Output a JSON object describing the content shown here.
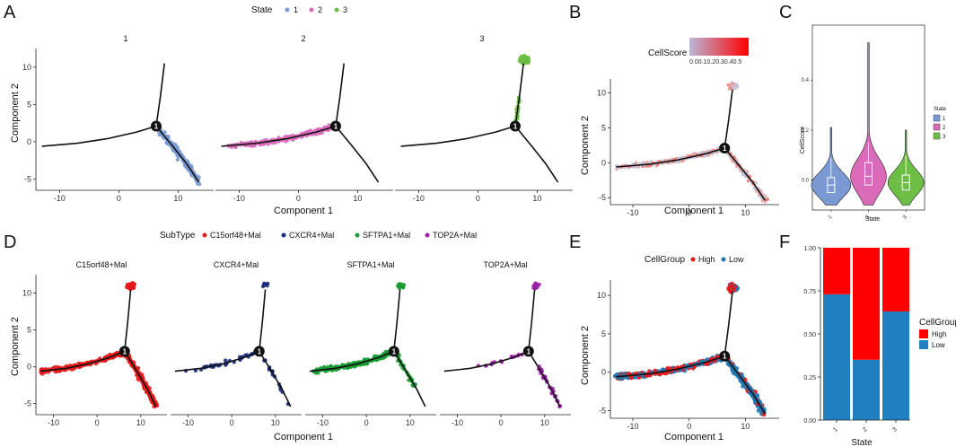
{
  "panels": {
    "A": {
      "label": "A",
      "legend_title": "State",
      "legend_items": [
        {
          "label": "1",
          "color": "#7b9ad3"
        },
        {
          "label": "2",
          "color": "#d96bb9"
        },
        {
          "label": "3",
          "color": "#6dbe45"
        }
      ],
      "facets": [
        "1",
        "2",
        "3"
      ],
      "xlabel": "Component 1",
      "ylabel": "Component 2",
      "xticks": [
        "-10",
        "0",
        "10"
      ],
      "yticks": [
        "10",
        "5",
        "0",
        "-5"
      ],
      "node_label": "1"
    },
    "B": {
      "label": "B",
      "legend_title": "CellScore",
      "colorbar_ticks": "0.00.10.20.30.40.5",
      "xlabel": "Component 1",
      "ylabel": "Component 2",
      "xticks": [
        "-10",
        "0",
        "10"
      ],
      "yticks": [
        "10",
        "5",
        "0",
        "-5"
      ],
      "node_label": "1"
    },
    "C": {
      "label": "C",
      "xlabel": "State",
      "ylabel": "CellScore",
      "yticks": [
        "0.4",
        "0.2",
        "0.0"
      ],
      "xticks": [
        "1",
        "2",
        "3"
      ],
      "legend_title": "State",
      "legend_items": [
        {
          "label": "1",
          "color": "#7b9ad3"
        },
        {
          "label": "2",
          "color": "#d96bb9"
        },
        {
          "label": "3",
          "color": "#6dbe45"
        }
      ]
    },
    "D": {
      "label": "D",
      "legend_title": "SubType",
      "legend_items": [
        {
          "label": "C15orf48+Mal",
          "color": "#e41a1c"
        },
        {
          "label": "CXCR4+Mal",
          "color": "#1a2a7c"
        },
        {
          "label": "SFTPA1+Mal",
          "color": "#1a9b34"
        },
        {
          "label": "TOP2A+Mal",
          "color": "#9b1fa6"
        }
      ],
      "facets": [
        "C15orf48+Mal",
        "CXCR4+Mal",
        "SFTPA1+Mal",
        "TOP2A+Mal"
      ],
      "xlabel": "Component 1",
      "ylabel": "Component 2",
      "xticks": [
        "-10",
        "0",
        "10"
      ],
      "yticks": [
        "10",
        "5",
        "0",
        "-5"
      ],
      "node_label": "1"
    },
    "E": {
      "label": "E",
      "legend_title": "CellGroup",
      "legend_items": [
        {
          "label": "High",
          "color": "#e41a1c"
        },
        {
          "label": "Low",
          "color": "#1f78b4"
        }
      ],
      "xlabel": "Component 1",
      "ylabel": "Component 2",
      "xticks": [
        "-10",
        "0",
        "10"
      ],
      "yticks": [
        "10",
        "5",
        "0",
        "-5"
      ],
      "node_label": "1"
    },
    "F": {
      "label": "F",
      "xlabel": "State",
      "yticks": [
        "1.00",
        "0.75",
        "0.50",
        "0.25",
        "0.00"
      ],
      "xticks": [
        "1",
        "2",
        "3"
      ],
      "legend_title": "CellGroup",
      "legend_items": [
        {
          "label": "High",
          "color": "#ff0000"
        },
        {
          "label": "Low",
          "color": "#1f7fbf"
        }
      ]
    }
  },
  "chart_data": [
    {
      "panel": "A",
      "type": "scatter",
      "title": "",
      "xlabel": "Component 1",
      "ylabel": "Component 2",
      "xlim": [
        -14,
        16
      ],
      "ylim": [
        -6.5,
        12.5
      ],
      "trajectory_branches": [
        {
          "name": "left",
          "points": [
            [
              -13,
              -0.6
            ],
            [
              -7,
              -0.2
            ],
            [
              -2,
              0.4
            ],
            [
              3,
              1.3
            ],
            [
              6.3,
              2.1
            ]
          ]
        },
        {
          "name": "up",
          "points": [
            [
              6.3,
              2.1
            ],
            [
              7,
              6
            ],
            [
              7.7,
              10.5
            ]
          ]
        },
        {
          "name": "down",
          "points": [
            [
              6.3,
              2.1
            ],
            [
              9,
              -0.5
            ],
            [
              11.5,
              -3
            ],
            [
              13.5,
              -5.4
            ]
          ]
        }
      ],
      "branch_node": [
        6.3,
        2.1
      ],
      "series": [
        {
          "name": "1",
          "color": "#7b9ad3",
          "region": "down branch",
          "x_range": [
            6.3,
            14.5
          ],
          "y_range": [
            -6,
            2
          ]
        },
        {
          "name": "2",
          "color": "#d96bb9",
          "region": "left branch",
          "x_range": [
            -12.5,
            6.3
          ],
          "y_range": [
            -1,
            2
          ]
        },
        {
          "name": "3",
          "color": "#6dbe45",
          "region": "up branch",
          "x_range": [
            5,
            8
          ],
          "y_range": [
            1,
            11.8
          ]
        }
      ]
    },
    {
      "panel": "B",
      "type": "scatter",
      "xlabel": "Component 1",
      "ylabel": "Component 2",
      "color_variable": "CellScore",
      "color_range": [
        0.0,
        0.5
      ],
      "xlim": [
        -14,
        16
      ],
      "ylim": [
        -6,
        12
      ]
    },
    {
      "panel": "C",
      "type": "violin",
      "xlabel": "State",
      "ylabel": "CellScore",
      "ylim": [
        -0.12,
        0.62
      ],
      "categories": [
        "1",
        "2",
        "3"
      ],
      "series": [
        {
          "name": "1",
          "median": -0.02,
          "q1": -0.05,
          "q3": 0.01,
          "min": -0.1,
          "max": 0.21,
          "color": "#7b9ad3"
        },
        {
          "name": "2",
          "median": 0.015,
          "q1": -0.02,
          "q3": 0.07,
          "min": -0.1,
          "max": 0.55,
          "color": "#d96bb9"
        },
        {
          "name": "3",
          "median": -0.01,
          "q1": -0.04,
          "q3": 0.02,
          "min": -0.1,
          "max": 0.2,
          "color": "#6dbe45"
        }
      ]
    },
    {
      "panel": "D",
      "type": "scatter",
      "xlabel": "Component 1",
      "ylabel": "Component 2",
      "xlim": [
        -14,
        16
      ],
      "ylim": [
        -6.5,
        12.5
      ],
      "facets": [
        "C15orf48+Mal",
        "CXCR4+Mal",
        "SFTPA1+Mal",
        "TOP2A+Mal"
      ]
    },
    {
      "panel": "E",
      "type": "scatter",
      "xlabel": "Component 1",
      "ylabel": "Component 2",
      "xlim": [
        -14,
        16
      ],
      "ylim": [
        -6,
        12
      ],
      "series": [
        {
          "name": "High",
          "color": "#e41a1c"
        },
        {
          "name": "Low",
          "color": "#1f78b4"
        }
      ]
    },
    {
      "panel": "F",
      "type": "bar",
      "stacked": true,
      "xlabel": "State",
      "ylabel": "",
      "ylim": [
        0,
        1
      ],
      "categories": [
        "1",
        "2",
        "3"
      ],
      "series": [
        {
          "name": "Low",
          "color": "#1f7fbf",
          "values": [
            0.73,
            0.35,
            0.63
          ]
        },
        {
          "name": "High",
          "color": "#ff0000",
          "values": [
            0.27,
            0.65,
            0.37
          ]
        }
      ]
    }
  ]
}
